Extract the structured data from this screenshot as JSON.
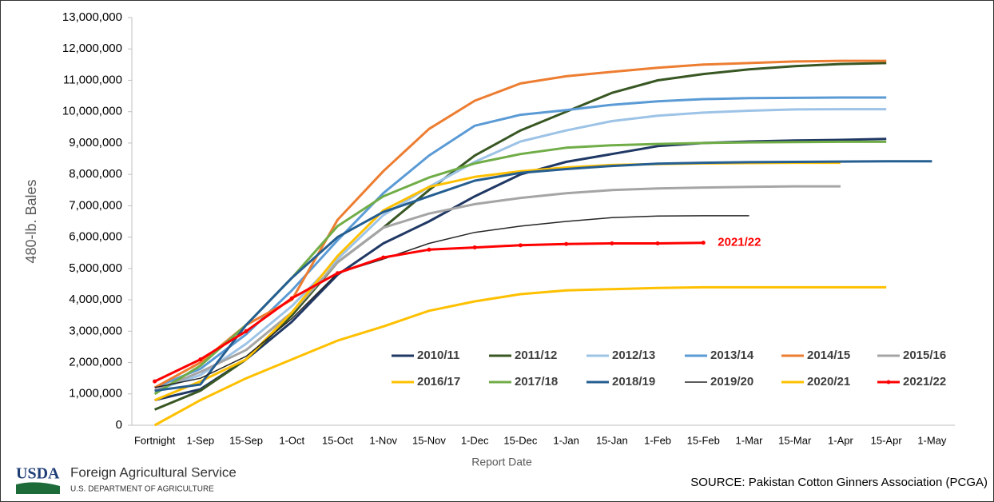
{
  "chart_data": {
    "type": "line",
    "y_label": "480-lb. Bales",
    "x_label": "Report Date",
    "annotation": "2021/22",
    "categories": [
      "Fortnight",
      "1-Sep",
      "15-Sep",
      "1-Oct",
      "15-Oct",
      "1-Nov",
      "15-Nov",
      "1-Dec",
      "15-Dec",
      "1-Jan",
      "15-Jan",
      "1-Feb",
      "15-Feb",
      "1-Mar",
      "15-Mar",
      "1-Apr",
      "15-Apr",
      "1-May"
    ],
    "ylim": [
      0,
      13000000
    ],
    "yticks": [
      0,
      {
        "value": 1000000,
        "label": "1,000,000"
      },
      {
        "value": 2000000,
        "label": "2,000,000"
      },
      {
        "value": 3000000,
        "label": "3,000,000"
      },
      {
        "value": 4000000,
        "label": "4,000,000"
      },
      {
        "value": 5000000,
        "label": "5,000,000"
      },
      {
        "value": 6000000,
        "label": "6,000,000"
      },
      {
        "value": 7000000,
        "label": "7,000,000"
      },
      {
        "value": 8000000,
        "label": "8,000,000"
      },
      {
        "value": 9000000,
        "label": "9,000,000"
      },
      {
        "value": 10000000,
        "label": "10,000,000"
      },
      {
        "value": 11000000,
        "label": "11,000,000"
      },
      {
        "value": 12000000,
        "label": "12,000,000"
      },
      {
        "value": 13000000,
        "label": "13,000,000"
      }
    ],
    "grid": false,
    "legend": "bottom-right",
    "series": [
      {
        "name": "2010/11",
        "color": "#203864",
        "values": [
          800000,
          1150000,
          2100000,
          3300000,
          4800000,
          5800000,
          6500000,
          7300000,
          8000000,
          8400000,
          8650000,
          8900000,
          9000000,
          9050000,
          9080000,
          9100000,
          9130000,
          null
        ]
      },
      {
        "name": "2011/12",
        "color": "#385723",
        "values": [
          500000,
          1100000,
          2100000,
          3500000,
          5200000,
          6300000,
          7500000,
          8600000,
          9400000,
          10000000,
          10600000,
          11000000,
          11200000,
          11350000,
          11450000,
          11520000,
          11550000,
          null
        ]
      },
      {
        "name": "2012/13",
        "color": "#9dc3e6",
        "values": [
          1100000,
          1600000,
          2600000,
          3800000,
          5300000,
          6700000,
          7600000,
          8400000,
          9050000,
          9400000,
          9700000,
          9870000,
          9970000,
          10030000,
          10070000,
          10080000,
          10080000,
          null
        ]
      },
      {
        "name": "2013/14",
        "color": "#5b9bd5",
        "values": [
          1200000,
          1800000,
          2900000,
          4300000,
          5900000,
          7400000,
          8600000,
          9550000,
          9900000,
          10050000,
          10220000,
          10330000,
          10400000,
          10430000,
          10440000,
          10450000,
          10450000,
          null
        ]
      },
      {
        "name": "2014/15",
        "color": "#ed7d31",
        "values": [
          1200000,
          2000000,
          3200000,
          4000000,
          6550000,
          8100000,
          9450000,
          10350000,
          10900000,
          11130000,
          11270000,
          11400000,
          11500000,
          11550000,
          11600000,
          11620000,
          11620000,
          null
        ]
      },
      {
        "name": "2015/16",
        "color": "#a5a5a5",
        "values": [
          1100000,
          1700000,
          2400000,
          3600000,
          5200000,
          6300000,
          6750000,
          7050000,
          7250000,
          7400000,
          7500000,
          7550000,
          7580000,
          7600000,
          7620000,
          7620000,
          null,
          null
        ]
      },
      {
        "name": "2016/17",
        "color": "#ffc000",
        "values": [
          800000,
          1400000,
          2100000,
          3600000,
          5400000,
          6850000,
          7600000,
          7920000,
          8100000,
          8220000,
          8300000,
          8330000,
          8350000,
          8360000,
          8370000,
          8370000,
          null,
          null
        ]
      },
      {
        "name": "2017/18",
        "color": "#70ad47",
        "values": [
          1000000,
          1900000,
          3200000,
          4700000,
          6350000,
          7300000,
          7900000,
          8350000,
          8650000,
          8850000,
          8930000,
          8970000,
          9000000,
          9020000,
          9030000,
          9040000,
          9040000,
          null
        ]
      },
      {
        "name": "2018/19",
        "color": "#255e91",
        "values": [
          1100000,
          1300000,
          3200000,
          4700000,
          6000000,
          6800000,
          7300000,
          7800000,
          8050000,
          8170000,
          8270000,
          8340000,
          8370000,
          8390000,
          8400000,
          8410000,
          8420000,
          8420000
        ]
      },
      {
        "name": "2019/20",
        "color": "#262626",
        "values": [
          1200000,
          1500000,
          2200000,
          3400000,
          4850000,
          5300000,
          5800000,
          6150000,
          6350000,
          6500000,
          6620000,
          6670000,
          6680000,
          6680000,
          null,
          null,
          null,
          null
        ]
      },
      {
        "name": "2020/21",
        "color": "#ffc000",
        "values": [
          0,
          800000,
          1500000,
          2100000,
          2700000,
          3150000,
          3650000,
          3950000,
          4180000,
          4300000,
          4340000,
          4380000,
          4400000,
          4400000,
          4400000,
          4400000,
          4400000,
          null
        ]
      },
      {
        "name": "2021/22",
        "color": "#ff0000",
        "marker": true,
        "values": [
          1400000,
          2100000,
          3000000,
          4050000,
          4850000,
          5350000,
          5600000,
          5670000,
          5740000,
          5780000,
          5800000,
          5800000,
          5820000,
          null,
          null,
          null,
          null,
          null
        ]
      }
    ]
  },
  "footer": {
    "logo": "USDA",
    "agency": "Foreign Agricultural Service",
    "department": "U.S. DEPARTMENT OF AGRICULTURE",
    "source": "SOURCE: Pakistan Cotton Ginners Association (PCGA)"
  }
}
